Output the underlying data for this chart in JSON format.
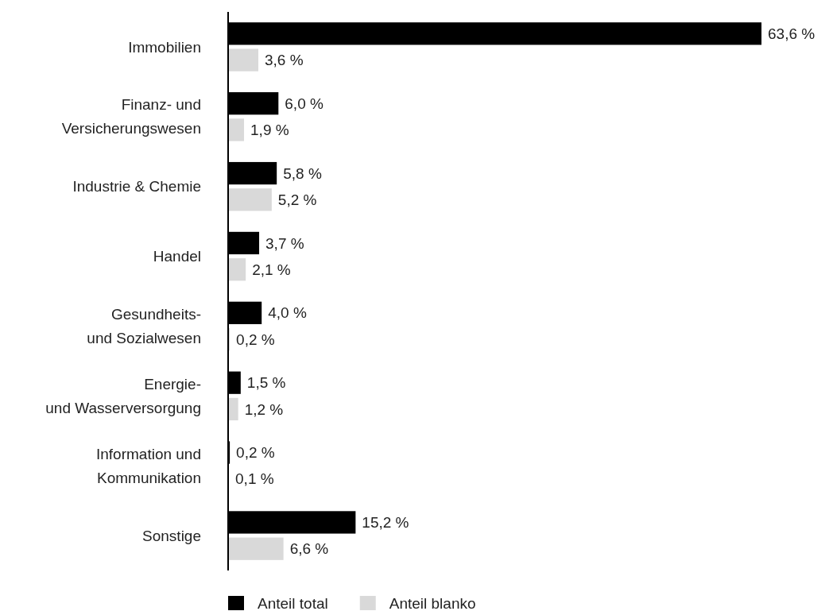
{
  "chart_data": {
    "type": "bar",
    "orientation": "horizontal",
    "legend": "bottom",
    "categories": [
      "Immobilien",
      "Finanz- und\nVersicherungswesen",
      "Industrie & Chemie",
      "Handel",
      "Gesundheits-\nund Sozialwesen",
      "Energie-\nund Wasserversorgung",
      "Information und\nKommunikation",
      "Sonstige"
    ],
    "series": [
      {
        "name": "Anteil total",
        "color": "#000000",
        "values": [
          63.6,
          6.0,
          5.8,
          3.7,
          4.0,
          1.5,
          0.2,
          15.2
        ],
        "value_labels": [
          "63,6 %",
          "6,0 %",
          "5,8 %",
          "3,7 %",
          "4,0 %",
          "1,5 %",
          "0,2 %",
          "15,2 %"
        ]
      },
      {
        "name": "Anteil blanko",
        "color": "#d9d9d9",
        "values": [
          3.6,
          1.9,
          5.2,
          2.1,
          0.2,
          1.2,
          0.1,
          6.6
        ],
        "value_labels": [
          "3,6 %",
          "1,9 %",
          "5,2 %",
          "2,1 %",
          "0,2 %",
          "1,2 %",
          "0,1 %",
          "6,6 %"
        ]
      }
    ]
  }
}
